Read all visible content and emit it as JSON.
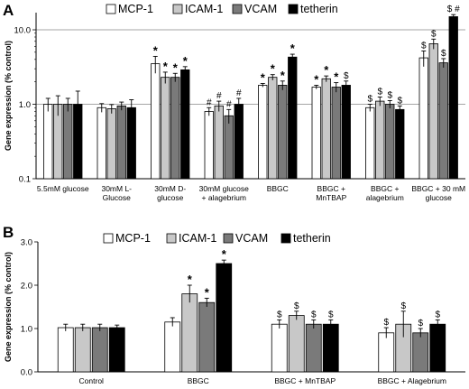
{
  "chart_data": [
    {
      "panel": "A",
      "type": "bar",
      "yscale": "log",
      "ylim": [
        0.1,
        17
      ],
      "yticks": [
        "0.1",
        "1.0",
        "10.0"
      ],
      "ylabel": "Gene expression (% control)",
      "grid": true,
      "legend": "top",
      "categories": [
        "5.5mM glucose",
        "30mM L-Glucose",
        "30mM D-glucose",
        "30mM glucose + alagebrium",
        "BBGC",
        "BBGC + MnTBAP",
        "BBGC + alagebrium",
        "BBGC + 30 mM glucose"
      ],
      "category_lines": [
        [
          "5.5mM glucose"
        ],
        [
          "30mM L-",
          "Glucose"
        ],
        [
          "30mM D-",
          "glucose"
        ],
        [
          "30mM glucose",
          "+ alagebrium"
        ],
        [
          "BBGC"
        ],
        [
          "BBGC +",
          "MnTBAP"
        ],
        [
          "BBGC +",
          "alagebrium"
        ],
        [
          "BBGC + 30 mM",
          "glucose"
        ]
      ],
      "series": [
        {
          "name": "MCP-1",
          "color": "#ffffff",
          "values": [
            1.0,
            0.9,
            3.5,
            0.8,
            1.8,
            1.7,
            0.9,
            4.2
          ],
          "errors": [
            0.2,
            0.12,
            0.9,
            0.1,
            0.1,
            0.1,
            0.1,
            1.0
          ],
          "annotations": [
            "",
            "",
            "*",
            "#",
            "*",
            "*",
            "$",
            "$"
          ]
        },
        {
          "name": "ICAM-1",
          "color": "#c8c8c8",
          "values": [
            1.0,
            0.87,
            2.3,
            0.95,
            2.3,
            2.2,
            1.1,
            6.5
          ],
          "errors": [
            0.3,
            0.12,
            0.4,
            0.15,
            0.2,
            0.2,
            0.15,
            1.0
          ],
          "annotations": [
            "",
            "",
            "*",
            "#",
            "*",
            "*",
            "$",
            "$"
          ]
        },
        {
          "name": "VCAM",
          "color": "#7a7a7a",
          "values": [
            1.0,
            0.95,
            2.3,
            0.7,
            1.8,
            1.7,
            1.0,
            3.6
          ],
          "errors": [
            0.2,
            0.12,
            0.3,
            0.15,
            0.25,
            0.25,
            0.12,
            0.5
          ],
          "annotations": [
            "",
            "",
            "*",
            "#",
            "*",
            "*",
            "$",
            "$"
          ]
        },
        {
          "name": "tetherin",
          "color": "#000000",
          "values": [
            1.0,
            0.9,
            2.9,
            1.0,
            4.3,
            1.8,
            0.85,
            15.0
          ],
          "errors": [
            0.5,
            0.25,
            0.3,
            0.2,
            0.4,
            0.25,
            0.1,
            1.0
          ],
          "annotations": [
            "",
            "",
            "*",
            "#",
            "*",
            "$",
            "$",
            "$ #"
          ]
        }
      ]
    },
    {
      "panel": "B",
      "type": "bar",
      "yscale": "linear",
      "ylim": [
        0.0,
        3.0
      ],
      "yticks": [
        "0.0",
        "1.0",
        "2.0",
        "3.0"
      ],
      "ylabel": "Gene expression (% control)",
      "grid": false,
      "legend": "top",
      "categories": [
        "Control",
        "BBGC",
        "BBGC + MnTBAP",
        "BBGC + Alagebrium"
      ],
      "series": [
        {
          "name": "MCP-1",
          "color": "#ffffff",
          "values": [
            1.02,
            1.15,
            1.1,
            0.9
          ],
          "errors": [
            0.08,
            0.1,
            0.1,
            0.12
          ],
          "annotations": [
            "",
            "",
            "$",
            "$"
          ]
        },
        {
          "name": "ICAM-1",
          "color": "#c8c8c8",
          "values": [
            1.02,
            1.8,
            1.3,
            1.1
          ],
          "errors": [
            0.08,
            0.2,
            0.1,
            0.3
          ],
          "annotations": [
            "",
            "*",
            "$",
            "$"
          ]
        },
        {
          "name": "VCAM",
          "color": "#7a7a7a",
          "values": [
            1.02,
            1.6,
            1.1,
            0.9
          ],
          "errors": [
            0.08,
            0.1,
            0.1,
            0.1
          ],
          "annotations": [
            "",
            "*",
            "$",
            "$"
          ]
        },
        {
          "name": "tetherin",
          "color": "#000000",
          "values": [
            1.02,
            2.5,
            1.1,
            1.1
          ],
          "errors": [
            0.06,
            0.08,
            0.1,
            0.1
          ],
          "annotations": [
            "",
            "*",
            "$",
            "$"
          ]
        }
      ]
    }
  ]
}
